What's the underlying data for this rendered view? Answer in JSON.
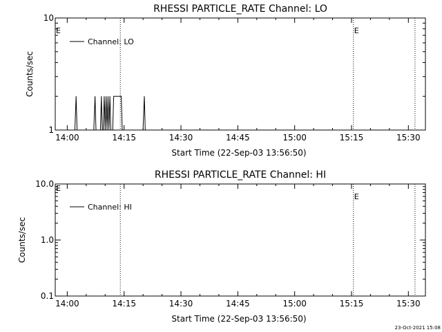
{
  "chart_data": [
    {
      "type": "line",
      "title": "RHESSI PARTICLE_RATE Channel: LO",
      "xlabel": "Start Time (22-Sep-03 13:56:50)",
      "ylabel": "Counts/sec",
      "y_scale": "log",
      "ylim": [
        1,
        10
      ],
      "xlim": [
        "13:56:50",
        "15:34:30"
      ],
      "x_ticks": [
        "14:00",
        "14:15",
        "14:30",
        "14:45",
        "15:00",
        "15:15",
        "15:30"
      ],
      "y_ticks": [
        "1",
        "10"
      ],
      "legend": {
        "placement": "top-left"
      },
      "markers": [
        {
          "time": "14:14:00",
          "label": ""
        },
        {
          "time": "15:15:30",
          "label": "E"
        },
        {
          "time": "15:31:45",
          "label": ""
        }
      ],
      "corner_label": "E",
      "series": [
        {
          "name": "Channel: LO",
          "x": [
            "14:02:00",
            "14:02:20",
            "14:02:35",
            "14:02:50",
            "14:07:00",
            "14:07:20",
            "14:07:35",
            "14:07:50",
            "14:08:45",
            "14:09:00",
            "14:09:15",
            "14:09:30",
            "14:09:45",
            "14:10:00",
            "14:10:15",
            "14:10:30",
            "14:10:45",
            "14:11:00",
            "14:11:15",
            "14:11:30",
            "14:11:45",
            "14:12:00",
            "14:12:15",
            "14:12:30",
            "14:12:45",
            "14:13:00",
            "14:14:15",
            "14:14:30",
            "14:20:00",
            "14:20:20",
            "14:20:35",
            "14:20:50"
          ],
          "values": [
            1,
            2,
            1,
            1,
            1,
            2,
            1,
            1,
            1,
            2,
            1,
            1,
            2,
            1,
            2,
            1,
            2,
            1,
            2,
            1,
            1,
            1,
            2,
            2,
            2,
            2,
            2,
            1,
            1,
            2,
            1,
            1
          ]
        }
      ]
    },
    {
      "type": "line",
      "title": "RHESSI PARTICLE_RATE Channel: HI",
      "xlabel": "Start Time (22-Sep-03 13:56:50)",
      "ylabel": "Counts/sec",
      "y_scale": "log",
      "ylim": [
        0.1,
        10
      ],
      "xlim": [
        "13:56:50",
        "15:34:30"
      ],
      "x_ticks": [
        "14:00",
        "14:15",
        "14:30",
        "14:45",
        "15:00",
        "15:15",
        "15:30"
      ],
      "y_ticks": [
        "0.1",
        "1.0",
        "10.0"
      ],
      "legend": {
        "placement": "top-left"
      },
      "markers": [
        {
          "time": "14:14:00",
          "label": ""
        },
        {
          "time": "15:15:30",
          "label": "E"
        },
        {
          "time": "15:31:45",
          "label": ""
        }
      ],
      "corner_label": "E",
      "series": [
        {
          "name": "Channel: HI",
          "x": [],
          "values": []
        }
      ]
    }
  ],
  "footer": {
    "timestamp": "23-Oct-2021 15:08"
  }
}
